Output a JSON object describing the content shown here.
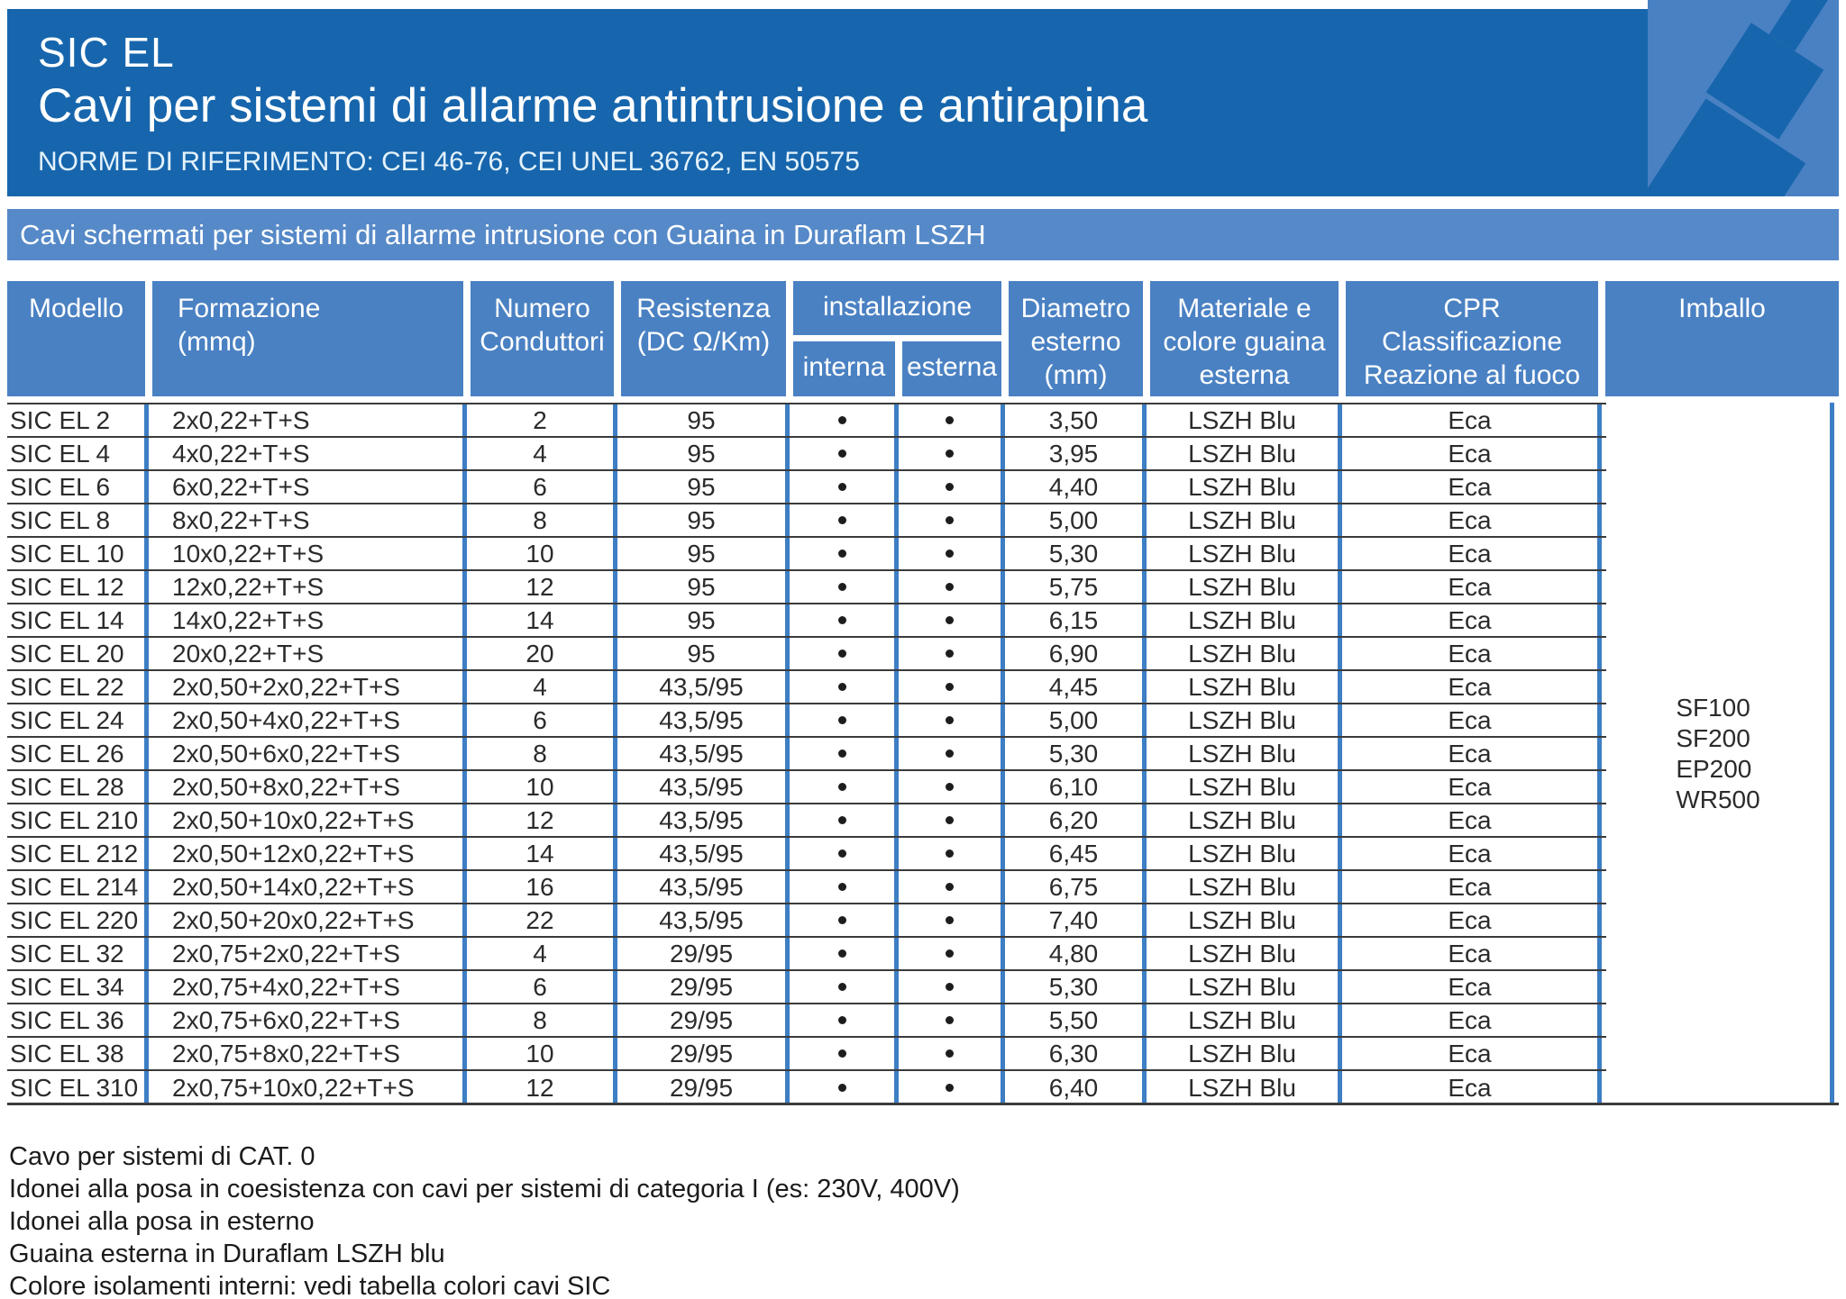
{
  "banner": {
    "product": "SIC EL",
    "title": "Cavi per sistemi di allarme antintrusione e antirapina",
    "norms": "NORME DI RIFERIMENTO: CEI 46-76, CEI UNEL 36762, EN 50575"
  },
  "subband": {
    "text": "Cavi schermati per sistemi di allarme intrusione con Guaina in Duraflam LSZH"
  },
  "colors": {
    "banner_blue": "#1766ad",
    "header_cell_blue": "#4a81c3",
    "subband_blue": "#5689c8",
    "grid_line_blue": "#3d7ec4",
    "row_line_dark": "#3b3b3b"
  },
  "table": {
    "headers": {
      "modello": "Modello",
      "formazione": "Formazione\n(mmq)",
      "numero": "Numero\nConduttori",
      "resistenza": "Resistenza\n(DC Ω/Km)",
      "installazione": "installazione",
      "interna": "interna",
      "esterna": "esterna",
      "diametro": "Diametro\nesterno\n(mm)",
      "materiale": "Materiale e\ncolore guaina\nesterna",
      "cpr": "CPR\nClassificazione\nReazione al fuoco",
      "imballo": "Imballo"
    },
    "rows": [
      {
        "modello": "SIC EL 2",
        "formazione": "2x0,22+T+S",
        "conduttori": "2",
        "resistenza": "95",
        "interna": true,
        "esterna": true,
        "diametro": "3,50",
        "materiale": "LSZH Blu",
        "cpr": "Eca"
      },
      {
        "modello": "SIC EL 4",
        "formazione": "4x0,22+T+S",
        "conduttori": "4",
        "resistenza": "95",
        "interna": true,
        "esterna": true,
        "diametro": "3,95",
        "materiale": "LSZH Blu",
        "cpr": "Eca"
      },
      {
        "modello": "SIC EL 6",
        "formazione": "6x0,22+T+S",
        "conduttori": "6",
        "resistenza": "95",
        "interna": true,
        "esterna": true,
        "diametro": "4,40",
        "materiale": "LSZH Blu",
        "cpr": "Eca"
      },
      {
        "modello": "SIC EL 8",
        "formazione": "8x0,22+T+S",
        "conduttori": "8",
        "resistenza": "95",
        "interna": true,
        "esterna": true,
        "diametro": "5,00",
        "materiale": "LSZH Blu",
        "cpr": "Eca"
      },
      {
        "modello": "SIC EL 10",
        "formazione": "10x0,22+T+S",
        "conduttori": "10",
        "resistenza": "95",
        "interna": true,
        "esterna": true,
        "diametro": "5,30",
        "materiale": "LSZH Blu",
        "cpr": "Eca"
      },
      {
        "modello": "SIC EL 12",
        "formazione": "12x0,22+T+S",
        "conduttori": "12",
        "resistenza": "95",
        "interna": true,
        "esterna": true,
        "diametro": "5,75",
        "materiale": "LSZH Blu",
        "cpr": "Eca"
      },
      {
        "modello": "SIC EL 14",
        "formazione": "14x0,22+T+S",
        "conduttori": "14",
        "resistenza": "95",
        "interna": true,
        "esterna": true,
        "diametro": "6,15",
        "materiale": "LSZH Blu",
        "cpr": "Eca"
      },
      {
        "modello": "SIC EL 20",
        "formazione": "20x0,22+T+S",
        "conduttori": "20",
        "resistenza": "95",
        "interna": true,
        "esterna": true,
        "diametro": "6,90",
        "materiale": "LSZH Blu",
        "cpr": "Eca"
      },
      {
        "modello": "SIC EL 22",
        "formazione": "2x0,50+2x0,22+T+S",
        "conduttori": "4",
        "resistenza": "43,5/95",
        "interna": true,
        "esterna": true,
        "diametro": "4,45",
        "materiale": "LSZH Blu",
        "cpr": "Eca"
      },
      {
        "modello": "SIC EL 24",
        "formazione": "2x0,50+4x0,22+T+S",
        "conduttori": "6",
        "resistenza": "43,5/95",
        "interna": true,
        "esterna": true,
        "diametro": "5,00",
        "materiale": "LSZH Blu",
        "cpr": "Eca"
      },
      {
        "modello": "SIC EL 26",
        "formazione": "2x0,50+6x0,22+T+S",
        "conduttori": "8",
        "resistenza": "43,5/95",
        "interna": true,
        "esterna": true,
        "diametro": "5,30",
        "materiale": "LSZH Blu",
        "cpr": "Eca"
      },
      {
        "modello": "SIC EL 28",
        "formazione": "2x0,50+8x0,22+T+S",
        "conduttori": "10",
        "resistenza": "43,5/95",
        "interna": true,
        "esterna": true,
        "diametro": "6,10",
        "materiale": "LSZH Blu",
        "cpr": "Eca"
      },
      {
        "modello": "SIC EL 210",
        "formazione": "2x0,50+10x0,22+T+S",
        "conduttori": "12",
        "resistenza": "43,5/95",
        "interna": true,
        "esterna": true,
        "diametro": "6,20",
        "materiale": "LSZH Blu",
        "cpr": "Eca"
      },
      {
        "modello": "SIC EL 212",
        "formazione": "2x0,50+12x0,22+T+S",
        "conduttori": "14",
        "resistenza": "43,5/95",
        "interna": true,
        "esterna": true,
        "diametro": "6,45",
        "materiale": "LSZH Blu",
        "cpr": "Eca"
      },
      {
        "modello": "SIC EL 214",
        "formazione": "2x0,50+14x0,22+T+S",
        "conduttori": "16",
        "resistenza": "43,5/95",
        "interna": true,
        "esterna": true,
        "diametro": "6,75",
        "materiale": "LSZH Blu",
        "cpr": "Eca"
      },
      {
        "modello": "SIC EL 220",
        "formazione": "2x0,50+20x0,22+T+S",
        "conduttori": "22",
        "resistenza": "43,5/95",
        "interna": true,
        "esterna": true,
        "diametro": "7,40",
        "materiale": "LSZH Blu",
        "cpr": "Eca"
      },
      {
        "modello": "SIC EL 32",
        "formazione": "2x0,75+2x0,22+T+S",
        "conduttori": "4",
        "resistenza": "29/95",
        "interna": true,
        "esterna": true,
        "diametro": "4,80",
        "materiale": "LSZH Blu",
        "cpr": "Eca"
      },
      {
        "modello": "SIC EL 34",
        "formazione": "2x0,75+4x0,22+T+S",
        "conduttori": "6",
        "resistenza": "29/95",
        "interna": true,
        "esterna": true,
        "diametro": "5,30",
        "materiale": "LSZH Blu",
        "cpr": "Eca"
      },
      {
        "modello": "SIC EL 36",
        "formazione": "2x0,75+6x0,22+T+S",
        "conduttori": "8",
        "resistenza": "29/95",
        "interna": true,
        "esterna": true,
        "diametro": "5,50",
        "materiale": "LSZH Blu",
        "cpr": "Eca"
      },
      {
        "modello": "SIC EL 38",
        "formazione": "2x0,75+8x0,22+T+S",
        "conduttori": "10",
        "resistenza": "29/95",
        "interna": true,
        "esterna": true,
        "diametro": "6,30",
        "materiale": "LSZH Blu",
        "cpr": "Eca"
      },
      {
        "modello": "SIC EL 310",
        "formazione": "2x0,75+10x0,22+T+S",
        "conduttori": "12",
        "resistenza": "29/95",
        "interna": true,
        "esterna": true,
        "diametro": "6,40",
        "materiale": "LSZH Blu",
        "cpr": "Eca"
      }
    ],
    "imballo": [
      "SF100",
      "SF200",
      "EP200",
      "WR500"
    ]
  },
  "footer": {
    "notes": [
      "Cavo per sistemi di CAT. 0",
      "Idonei alla posa in coesistenza con cavi per sistemi di categoria I (es: 230V, 400V)",
      "Idonei alla posa in esterno",
      "Guaina esterna in Duraflam LSZH blu",
      "Colore isolamenti interni: vedi tabella colori cavi SIC"
    ]
  }
}
